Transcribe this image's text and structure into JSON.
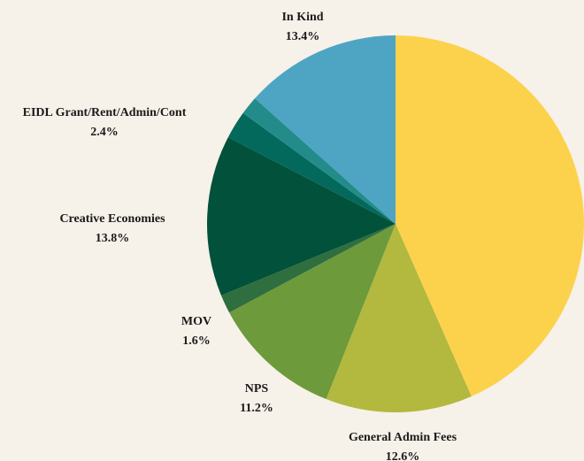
{
  "chart_data": {
    "type": "pie",
    "slices": [
      {
        "label": "",
        "value": 43.4,
        "value_text": "",
        "color": "#fcd24d"
      },
      {
        "label": "General Admin Fees",
        "value": 12.6,
        "value_text": "12.6%",
        "color": "#b3b83f"
      },
      {
        "label": "NPS",
        "value": 11.2,
        "value_text": "11.2%",
        "color": "#6d9a3b"
      },
      {
        "label": "MOV",
        "value": 1.6,
        "value_text": "1.6%",
        "color": "#2f6e3e"
      },
      {
        "label": "Creative Economies",
        "value": 13.8,
        "value_text": "13.8%",
        "color": "#02513a"
      },
      {
        "label": "EIDL Grant/Rent/Admin/Cont",
        "value": 2.4,
        "value_text": "2.4%",
        "color": "#03695c"
      },
      {
        "label": "",
        "value": 1.6,
        "value_text": "",
        "color": "#238c8a"
      },
      {
        "label": "In Kind",
        "value": 13.4,
        "value_text": "13.4%",
        "color": "#4ea5c3"
      }
    ],
    "start_angle": "12 o'clock",
    "direction": "clockwise",
    "legend": "none"
  }
}
